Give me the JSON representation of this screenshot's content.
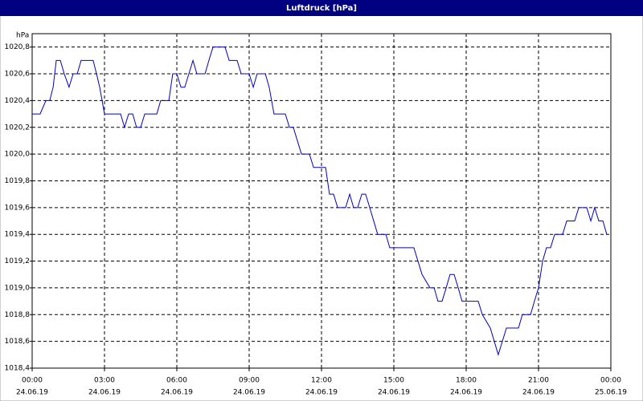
{
  "chart_data": {
    "type": "line",
    "title": "Luftdruck [hPa]",
    "y_unit": "hPa",
    "x": [
      0,
      0.33,
      0.57,
      0.73,
      0.87,
      1.0,
      1.17,
      1.33,
      1.53,
      1.7,
      1.87,
      2.03,
      2.53,
      2.67,
      2.8,
      3.0,
      3.67,
      3.83,
      4.0,
      4.17,
      4.33,
      4.5,
      4.67,
      5.17,
      5.33,
      5.67,
      5.83,
      6.0,
      6.17,
      6.33,
      6.5,
      6.67,
      6.83,
      7.17,
      7.33,
      7.5,
      8.0,
      8.17,
      8.5,
      8.67,
      9.0,
      9.17,
      9.33,
      9.67,
      9.83,
      10.03,
      10.5,
      10.67,
      10.83,
      11.0,
      11.17,
      11.5,
      11.67,
      12.17,
      12.33,
      12.5,
      12.67,
      13.0,
      13.17,
      13.33,
      13.5,
      13.67,
      13.83,
      14.0,
      14.33,
      14.67,
      14.83,
      15.83,
      16.0,
      16.17,
      16.5,
      16.67,
      16.83,
      17.0,
      17.17,
      17.33,
      17.5,
      17.67,
      17.83,
      18.5,
      18.67,
      19.0,
      19.33,
      19.5,
      19.67,
      20.17,
      20.33,
      20.67,
      20.83,
      21.0,
      21.17,
      21.33,
      21.5,
      21.67,
      22.0,
      22.17,
      22.5,
      22.67,
      23.0,
      23.17,
      23.33,
      23.5,
      23.67,
      23.83
    ],
    "values": [
      1020.3,
      1020.3,
      1020.4,
      1020.4,
      1020.5,
      1020.7,
      1020.7,
      1020.6,
      1020.5,
      1020.6,
      1020.6,
      1020.7,
      1020.7,
      1020.6,
      1020.5,
      1020.3,
      1020.3,
      1020.2,
      1020.3,
      1020.3,
      1020.2,
      1020.2,
      1020.3,
      1020.3,
      1020.4,
      1020.4,
      1020.6,
      1020.6,
      1020.5,
      1020.5,
      1020.6,
      1020.7,
      1020.6,
      1020.6,
      1020.7,
      1020.8,
      1020.8,
      1020.7,
      1020.7,
      1020.6,
      1020.6,
      1020.5,
      1020.6,
      1020.6,
      1020.5,
      1020.3,
      1020.3,
      1020.2,
      1020.2,
      1020.1,
      1020.0,
      1020.0,
      1019.9,
      1019.9,
      1019.7,
      1019.7,
      1019.6,
      1019.6,
      1019.7,
      1019.6,
      1019.6,
      1019.7,
      1019.7,
      1019.6,
      1019.4,
      1019.4,
      1019.3,
      1019.3,
      1019.2,
      1019.1,
      1019.0,
      1019.0,
      1018.9,
      1018.9,
      1019.0,
      1019.1,
      1019.1,
      1019.0,
      1018.9,
      1018.9,
      1018.8,
      1018.7,
      1018.5,
      1018.6,
      1018.7,
      1018.7,
      1018.8,
      1018.8,
      1018.9,
      1019.0,
      1019.2,
      1019.3,
      1019.3,
      1019.4,
      1019.4,
      1019.5,
      1019.5,
      1019.6,
      1019.6,
      1019.5,
      1019.6,
      1019.5,
      1019.5,
      1019.4
    ],
    "color": "#0000c0",
    "xlim": [
      0,
      24
    ],
    "xticks": [
      {
        "value": 0,
        "label": "00:00"
      },
      {
        "value": 3,
        "label": "03:00"
      },
      {
        "value": 6,
        "label": "06:00"
      },
      {
        "value": 9,
        "label": "09:00"
      },
      {
        "value": 12,
        "label": "12:00"
      },
      {
        "value": 15,
        "label": "15:00"
      },
      {
        "value": 18,
        "label": "18:00"
      },
      {
        "value": 21,
        "label": "21:00"
      },
      {
        "value": 24,
        "label": "00:00"
      }
    ],
    "xtick_dates": [
      "24.06.19",
      "24.06.19",
      "24.06.19",
      "24.06.19",
      "24.06.19",
      "24.06.19",
      "24.06.19",
      "24.06.19",
      "25.06.19"
    ],
    "ylim": [
      1018.4,
      1020.9
    ],
    "yticks": [
      {
        "value": 1018.4,
        "label": "1018,4"
      },
      {
        "value": 1018.6,
        "label": "1018,6"
      },
      {
        "value": 1018.8,
        "label": "1018,8"
      },
      {
        "value": 1019.0,
        "label": "1019,0"
      },
      {
        "value": 1019.2,
        "label": "1019,2"
      },
      {
        "value": 1019.4,
        "label": "1019,4"
      },
      {
        "value": 1019.6,
        "label": "1019,6"
      },
      {
        "value": 1019.8,
        "label": "1019,8"
      },
      {
        "value": 1020.0,
        "label": "1020,0"
      },
      {
        "value": 1020.2,
        "label": "1020,2"
      },
      {
        "value": 1020.4,
        "label": "1020,4"
      },
      {
        "value": 1020.6,
        "label": "1020,6"
      },
      {
        "value": 1020.8,
        "label": "1020,8"
      }
    ],
    "grid": true
  }
}
